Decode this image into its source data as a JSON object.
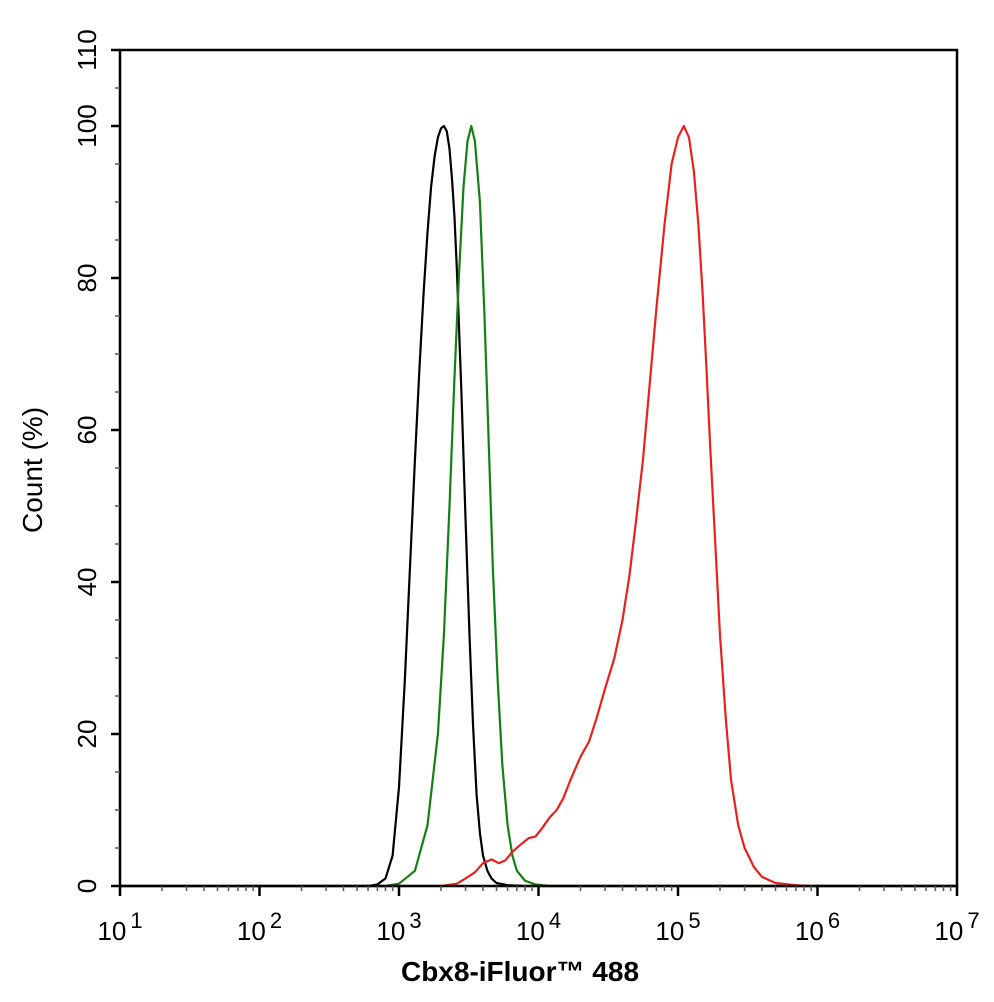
{
  "chart_data": {
    "type": "line",
    "title": "",
    "xlabel": "Cbx8-iFluor™ 488",
    "ylabel": "Count  (%)",
    "x_scale": "log",
    "xlim": [
      10,
      10000000
    ],
    "ylim": [
      0,
      110
    ],
    "x_ticks": [
      {
        "value": 10,
        "base": "10",
        "exp": "1"
      },
      {
        "value": 100,
        "base": "10",
        "exp": "2"
      },
      {
        "value": 1000,
        "base": "10",
        "exp": "3"
      },
      {
        "value": 10000,
        "base": "10",
        "exp": "4"
      },
      {
        "value": 100000,
        "base": "10",
        "exp": "5"
      },
      {
        "value": 1000000,
        "base": "10",
        "exp": "6"
      },
      {
        "value": 10000000,
        "base": "10",
        "exp": "7"
      }
    ],
    "y_ticks": [
      0,
      20,
      40,
      60,
      80,
      100,
      110
    ],
    "grid": false,
    "legend": "none",
    "series": [
      {
        "color": "#000000",
        "points": [
          [
            10,
            0
          ],
          [
            600,
            0
          ],
          [
            700,
            0.2
          ],
          [
            800,
            1
          ],
          [
            900,
            4
          ],
          [
            1000,
            13
          ],
          [
            1100,
            27
          ],
          [
            1200,
            42
          ],
          [
            1300,
            56
          ],
          [
            1400,
            68
          ],
          [
            1500,
            78
          ],
          [
            1600,
            86
          ],
          [
            1700,
            92
          ],
          [
            1800,
            96
          ],
          [
            1900,
            98.5
          ],
          [
            2000,
            99.7
          ],
          [
            2100,
            100
          ],
          [
            2200,
            99.3
          ],
          [
            2300,
            97
          ],
          [
            2400,
            93
          ],
          [
            2500,
            88
          ],
          [
            2600,
            81
          ],
          [
            2800,
            65
          ],
          [
            3000,
            48
          ],
          [
            3200,
            33
          ],
          [
            3400,
            21
          ],
          [
            3600,
            12
          ],
          [
            3800,
            7
          ],
          [
            4000,
            4
          ],
          [
            4300,
            2
          ],
          [
            4600,
            1
          ],
          [
            5000,
            0.4
          ],
          [
            6000,
            0.1
          ],
          [
            8000,
            0
          ],
          [
            10000000,
            0
          ]
        ]
      },
      {
        "color": "#138013",
        "points": [
          [
            10,
            0
          ],
          [
            800,
            0
          ],
          [
            1000,
            0.3
          ],
          [
            1300,
            2
          ],
          [
            1600,
            8
          ],
          [
            1900,
            20
          ],
          [
            2100,
            33
          ],
          [
            2300,
            50
          ],
          [
            2500,
            67
          ],
          [
            2700,
            81
          ],
          [
            2900,
            92
          ],
          [
            3100,
            98
          ],
          [
            3300,
            100
          ],
          [
            3500,
            98
          ],
          [
            3800,
            90
          ],
          [
            4100,
            75
          ],
          [
            4400,
            58
          ],
          [
            4700,
            42
          ],
          [
            5100,
            27
          ],
          [
            5500,
            16
          ],
          [
            6000,
            8
          ],
          [
            6500,
            4
          ],
          [
            7000,
            2
          ],
          [
            8000,
            0.7
          ],
          [
            9500,
            0.2
          ],
          [
            12000,
            0
          ],
          [
            10000000,
            0
          ]
        ]
      },
      {
        "color": "#e8211f",
        "points": [
          [
            10,
            0
          ],
          [
            2000,
            0
          ],
          [
            2600,
            0.3
          ],
          [
            3000,
            1
          ],
          [
            3500,
            1.8
          ],
          [
            4000,
            3
          ],
          [
            4600,
            3.5
          ],
          [
            5200,
            3
          ],
          [
            5800,
            3.4
          ],
          [
            6500,
            4.5
          ],
          [
            7500,
            5.5
          ],
          [
            8500,
            6.3
          ],
          [
            9500,
            6.5
          ],
          [
            10500,
            7.5
          ],
          [
            12000,
            9
          ],
          [
            13500,
            10
          ],
          [
            15000,
            11.5
          ],
          [
            17000,
            14
          ],
          [
            20000,
            17
          ],
          [
            23000,
            19
          ],
          [
            26000,
            22
          ],
          [
            30000,
            26
          ],
          [
            35000,
            30
          ],
          [
            40000,
            35
          ],
          [
            45000,
            41
          ],
          [
            50000,
            48
          ],
          [
            56000,
            56
          ],
          [
            62000,
            65
          ],
          [
            70000,
            76
          ],
          [
            80000,
            87
          ],
          [
            90000,
            95
          ],
          [
            100000,
            98.5
          ],
          [
            110000,
            100
          ],
          [
            120000,
            98.5
          ],
          [
            130000,
            94
          ],
          [
            140000,
            87
          ],
          [
            150000,
            78
          ],
          [
            160000,
            68
          ],
          [
            170000,
            58
          ],
          [
            185000,
            45
          ],
          [
            200000,
            33
          ],
          [
            220000,
            22
          ],
          [
            240000,
            14
          ],
          [
            270000,
            8
          ],
          [
            300000,
            5
          ],
          [
            350000,
            2.5
          ],
          [
            400000,
            1.2
          ],
          [
            500000,
            0.4
          ],
          [
            700000,
            0.1
          ],
          [
            900000,
            0
          ],
          [
            10000000,
            0
          ]
        ]
      }
    ]
  }
}
